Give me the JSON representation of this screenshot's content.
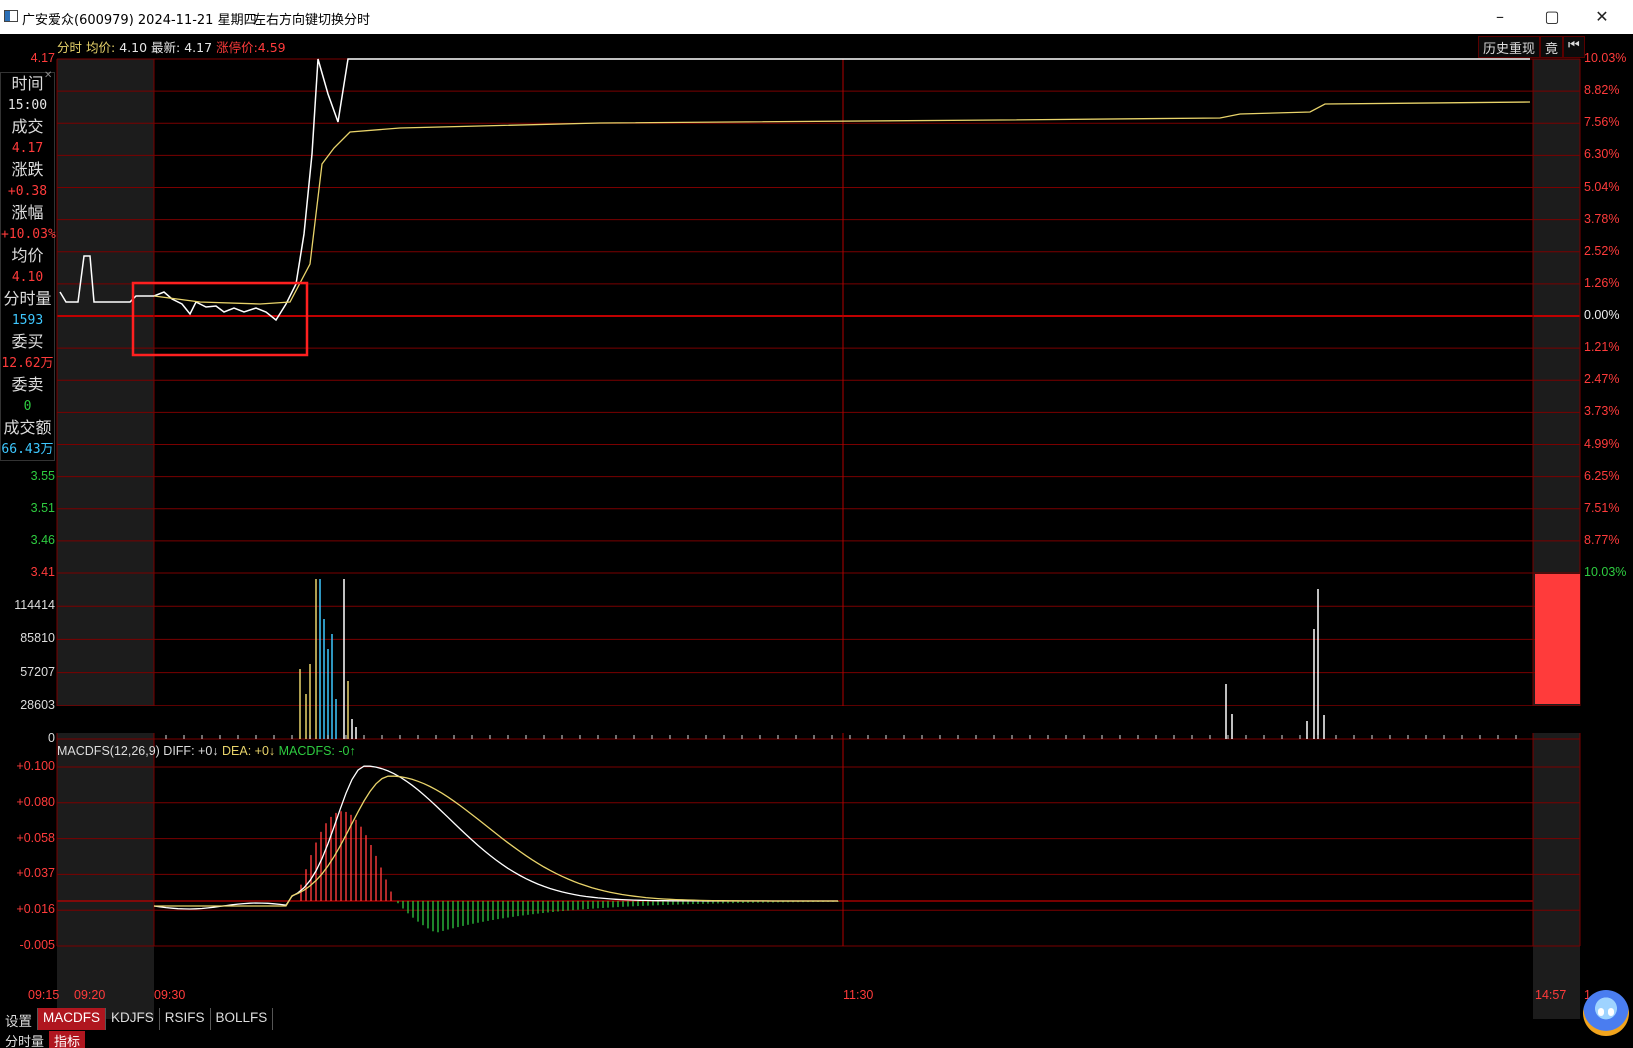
{
  "window": {
    "title": "广安爱众(600979) 2024-11-21 星期四",
    "hint": "左右方向键切换分时",
    "minimize": "–",
    "restore": "▢",
    "close": "✕"
  },
  "info_strip": {
    "mode": "分时",
    "avg_label": "均价:",
    "avg_value": "4.10",
    "latest_label": "最新:",
    "latest_value": "4.17",
    "limit_label": "涨停价:",
    "limit_value": "4.59"
  },
  "top_buttons": {
    "history": "历史重现",
    "auction": "竟",
    "back": "⏮"
  },
  "left_panel": [
    {
      "label": "时间",
      "value": "15:00",
      "color": "#e6e6e6"
    },
    {
      "label": "成交",
      "value": "4.17",
      "color": "#ff3b3b"
    },
    {
      "label": "涨跌",
      "value": "+0.38",
      "color": "#ff3b3b"
    },
    {
      "label": "涨幅",
      "value": "+10.03%",
      "color": "#ff3b3b"
    },
    {
      "label": "均价",
      "value": "4.10",
      "color": "#ff3b3b"
    },
    {
      "label": "分时量",
      "value": "1593",
      "color": "#3ec8ff"
    },
    {
      "label": "委买",
      "value": "12.62万",
      "color": "#ff3b3b"
    },
    {
      "label": "委卖",
      "value": "0",
      "color": "#2ecc40"
    },
    {
      "label": "成交额",
      "value": "66.43万",
      "color": "#3ec8ff"
    }
  ],
  "price_axis_left": {
    "top": "4.17",
    "low_labels": [
      "3.55",
      "3.51",
      "3.46",
      "3.41"
    ]
  },
  "pct_axis_right": [
    "10.03%",
    "8.82%",
    "7.56%",
    "6.30%",
    "5.04%",
    "3.78%",
    "2.52%",
    "1.26%",
    "0.00%",
    "1.21%",
    "2.47%",
    "3.73%",
    "4.99%",
    "6.25%",
    "7.51%",
    "8.77%",
    "10.03%"
  ],
  "volume_axis": [
    "114414",
    "85810",
    "57207",
    "28603",
    "0"
  ],
  "macd": {
    "title": "MACDFS(12,26,9)",
    "diff": "DIFF: +0↓",
    "dea": "DEA: +0↓",
    "macdfs": "MACDFS: -0↑",
    "axis": [
      "+0.100",
      "+0.080",
      "+0.058",
      "+0.037",
      "+0.016",
      "-0.005"
    ]
  },
  "time_axis": [
    "09:15",
    "09:20",
    "09:30",
    "11:30",
    "14:57",
    "1"
  ],
  "bottom_tabs": [
    "设置",
    "MACDFS",
    "KDJFS",
    "RSIFS",
    "BOLLFS"
  ],
  "bottom_tabs2": [
    "分时量",
    "指标"
  ],
  "colors": {
    "grid": "#7a0000",
    "price_line": "#ffffff",
    "avg_line": "#e8d36a",
    "up": "#ff3b3b",
    "down": "#2ecc40",
    "cyan": "#3ec8ff",
    "highlight_box": "#ff2020"
  }
}
